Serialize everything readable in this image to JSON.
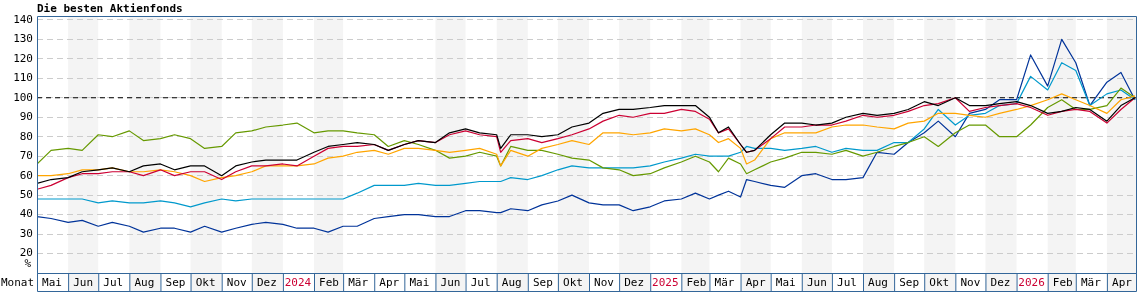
{
  "chart_data": {
    "type": "line",
    "title": "Die besten Aktienfonds",
    "xlabel": "Monat",
    "ylabel": "%",
    "x": [
      "2023-05-01",
      "2023-05-15",
      "2023-06-01",
      "2023-06-15",
      "2023-07-01",
      "2023-07-15",
      "2023-08-01",
      "2023-08-15",
      "2023-09-01",
      "2023-09-15",
      "2023-10-01",
      "2023-10-15",
      "2023-11-01",
      "2023-11-15",
      "2023-12-01",
      "2023-12-15",
      "2024-01-01",
      "2024-01-15",
      "2024-02-01",
      "2024-02-15",
      "2024-03-01",
      "2024-03-15",
      "2024-04-01",
      "2024-04-15",
      "2024-05-01",
      "2024-05-15",
      "2024-06-01",
      "2024-06-15",
      "2024-07-01",
      "2024-07-15",
      "2024-08-01",
      "2024-08-05",
      "2024-08-15",
      "2024-09-01",
      "2024-09-15",
      "2024-10-01",
      "2024-10-15",
      "2024-11-01",
      "2024-11-15",
      "2024-12-01",
      "2024-12-15",
      "2025-01-01",
      "2025-01-15",
      "2025-02-01",
      "2025-02-15",
      "2025-03-01",
      "2025-03-10",
      "2025-03-20",
      "2025-04-01",
      "2025-04-07",
      "2025-04-15",
      "2025-05-01",
      "2025-05-15",
      "2025-06-01",
      "2025-06-15",
      "2025-07-01",
      "2025-07-15",
      "2025-08-01",
      "2025-08-15",
      "2025-09-01",
      "2025-09-15",
      "2025-10-01",
      "2025-10-15",
      "2025-11-01",
      "2025-11-15",
      "2025-12-01",
      "2025-12-15",
      "2026-01-01",
      "2026-01-15",
      "2026-02-01",
      "2026-02-15",
      "2026-03-01",
      "2026-03-15",
      "2026-04-01",
      "2026-04-15",
      "2026-04-29"
    ],
    "series": [
      {
        "color": "#000000",
        "values": [
          56,
          58,
          59,
          62,
          63,
          64,
          62,
          65,
          66,
          63,
          65,
          65,
          60,
          65,
          67,
          68,
          68,
          68,
          72,
          75,
          76,
          77,
          76,
          73,
          76,
          78,
          77,
          82,
          84,
          82,
          81,
          74,
          81,
          81,
          80,
          81,
          85,
          87,
          92,
          94,
          94,
          95,
          96,
          96,
          96,
          90,
          82,
          85,
          76,
          72,
          73,
          81,
          87,
          87,
          86,
          87,
          90,
          92,
          91,
          92,
          94,
          98,
          96,
          100,
          96,
          96,
          97,
          98,
          96,
          92,
          93,
          95,
          94,
          88,
          96,
          100
        ]
      },
      {
        "color": "#cc0033",
        "values": [
          53,
          55,
          59,
          61,
          61,
          62,
          62,
          60,
          63,
          60,
          62,
          62,
          58,
          62,
          65,
          65,
          66,
          65,
          70,
          74,
          75,
          75,
          76,
          73,
          76,
          78,
          77,
          81,
          83,
          81,
          80,
          72,
          78,
          79,
          77,
          79,
          81,
          84,
          88,
          91,
          90,
          92,
          92,
          94,
          93,
          89,
          82,
          84,
          76,
          72,
          73,
          79,
          85,
          85,
          86,
          86,
          88,
          91,
          90,
          91,
          93,
          96,
          97,
          100,
          93,
          95,
          96,
          97,
          95,
          91,
          93,
          94,
          93,
          87,
          94,
          100
        ]
      },
      {
        "color": "#ffa500",
        "values": [
          60,
          60,
          61,
          63,
          63,
          64,
          62,
          62,
          63,
          62,
          60,
          57,
          59,
          60,
          62,
          65,
          65,
          65,
          66,
          69,
          70,
          72,
          73,
          71,
          74,
          74,
          73,
          72,
          73,
          74,
          71,
          65,
          73,
          70,
          74,
          76,
          78,
          76,
          82,
          82,
          81,
          82,
          84,
          83,
          84,
          81,
          77,
          79,
          74,
          66,
          68,
          79,
          82,
          82,
          82,
          85,
          86,
          86,
          85,
          84,
          87,
          88,
          92,
          92,
          91,
          90,
          92,
          94,
          96,
          99,
          102,
          99,
          96,
          92,
          99,
          101
        ]
      },
      {
        "color": "#669900",
        "values": [
          66,
          73,
          74,
          73,
          81,
          80,
          83,
          78,
          79,
          81,
          79,
          74,
          75,
          82,
          83,
          85,
          86,
          87,
          82,
          83,
          83,
          82,
          81,
          75,
          78,
          76,
          73,
          69,
          70,
          72,
          70,
          65,
          75,
          73,
          73,
          71,
          69,
          68,
          64,
          63,
          60,
          61,
          64,
          67,
          70,
          67,
          62,
          69,
          66,
          61,
          63,
          67,
          69,
          72,
          72,
          71,
          73,
          70,
          72,
          75,
          77,
          80,
          75,
          82,
          86,
          86,
          80,
          80,
          86,
          95,
          99,
          94,
          94,
          96,
          105,
          100
        ]
      },
      {
        "color": "#0099cc",
        "values": [
          48,
          48,
          48,
          48,
          46,
          47,
          46,
          46,
          47,
          46,
          44,
          46,
          48,
          47,
          48,
          48,
          48,
          48,
          48,
          48,
          48,
          51,
          55,
          55,
          55,
          56,
          55,
          55,
          56,
          57,
          57,
          57,
          59,
          58,
          60,
          63,
          65,
          64,
          64,
          64,
          64,
          65,
          67,
          69,
          71,
          70,
          70,
          70,
          72,
          75,
          74,
          74,
          73,
          74,
          75,
          72,
          74,
          73,
          73,
          77,
          77,
          84,
          94,
          86,
          91,
          92,
          96,
          97,
          111,
          104,
          118,
          114,
          96,
          102,
          104,
          99
        ]
      },
      {
        "color": "#003399",
        "values": [
          39,
          38,
          36,
          37,
          34,
          36,
          34,
          31,
          33,
          33,
          31,
          34,
          31,
          33,
          35,
          36,
          35,
          33,
          33,
          31,
          34,
          34,
          38,
          39,
          40,
          40,
          39,
          39,
          42,
          42,
          41,
          41,
          43,
          42,
          45,
          47,
          50,
          46,
          45,
          45,
          42,
          44,
          47,
          48,
          51,
          48,
          50,
          52,
          49,
          58,
          57,
          55,
          54,
          60,
          61,
          58,
          58,
          59,
          72,
          71,
          77,
          82,
          88,
          80,
          92,
          94,
          99,
          99,
          122,
          106,
          130,
          118,
          96,
          108,
          113,
          99
        ]
      }
    ],
    "xlim": [
      "2023-05-01",
      "2026-05-01"
    ],
    "xticks": [
      {
        "value": "2023-05-16",
        "label": "Mai"
      },
      {
        "value": "2023-06-16",
        "label": "Jun"
      },
      {
        "value": "2023-07-16",
        "label": "Jul"
      },
      {
        "value": "2023-08-16",
        "label": "Aug"
      },
      {
        "value": "2023-09-16",
        "label": "Sep"
      },
      {
        "value": "2023-10-16",
        "label": "Okt"
      },
      {
        "value": "2023-11-16",
        "label": "Nov"
      },
      {
        "value": "2023-12-16",
        "label": "Dez"
      },
      {
        "value": "2024-01-16",
        "label": "2024"
      },
      {
        "value": "2024-02-16",
        "label": "Feb"
      },
      {
        "value": "2024-03-16",
        "label": "Mär"
      },
      {
        "value": "2024-04-16",
        "label": "Apr"
      },
      {
        "value": "2024-05-16",
        "label": "Mai"
      },
      {
        "value": "2024-06-16",
        "label": "Jun"
      },
      {
        "value": "2024-07-16",
        "label": "Jul"
      },
      {
        "value": "2024-08-16",
        "label": "Aug"
      },
      {
        "value": "2024-09-16",
        "label": "Sep"
      },
      {
        "value": "2024-10-16",
        "label": "Okt"
      },
      {
        "value": "2024-11-16",
        "label": "Nov"
      },
      {
        "value": "2024-12-16",
        "label": "Dez"
      },
      {
        "value": "2025-01-16",
        "label": "2025"
      },
      {
        "value": "2025-02-16",
        "label": "Feb"
      },
      {
        "value": "2025-03-16",
        "label": "Mär"
      },
      {
        "value": "2025-04-16",
        "label": "Apr"
      },
      {
        "value": "2025-05-16",
        "label": "Mai"
      },
      {
        "value": "2025-06-16",
        "label": "Jun"
      },
      {
        "value": "2025-07-16",
        "label": "Jul"
      },
      {
        "value": "2025-08-16",
        "label": "Aug"
      },
      {
        "value": "2025-09-16",
        "label": "Sep"
      },
      {
        "value": "2025-10-16",
        "label": "Okt"
      },
      {
        "value": "2025-11-16",
        "label": "Nov"
      },
      {
        "value": "2025-12-16",
        "label": "Dez"
      },
      {
        "value": "2026-01-16",
        "label": "2026"
      },
      {
        "value": "2026-02-16",
        "label": "Feb"
      },
      {
        "value": "2026-03-16",
        "label": "Mär"
      },
      {
        "value": "2026-04-16",
        "label": "Apr"
      }
    ],
    "ylim": [
      10,
      142
    ],
    "yticks": [
      20,
      30,
      40,
      50,
      60,
      70,
      80,
      90,
      100,
      110,
      120,
      130,
      140
    ],
    "grid": "y",
    "marker": "none",
    "line_style": "solid",
    "ref_lines": [
      {
        "axis": "y",
        "value": 100,
        "color": "#000000",
        "line_style": "dashed"
      }
    ],
    "bands": [
      {
        "axis": "x",
        "from": "2023-06-01",
        "to": "2023-07-01",
        "color": "#f4f4f4"
      },
      {
        "axis": "x",
        "from": "2023-08-01",
        "to": "2023-09-01",
        "color": "#f4f4f4"
      },
      {
        "axis": "x",
        "from": "2023-10-01",
        "to": "2023-11-01",
        "color": "#f4f4f4"
      },
      {
        "axis": "x",
        "from": "2023-12-01",
        "to": "2024-01-01",
        "color": "#f4f4f4"
      },
      {
        "axis": "x",
        "from": "2024-02-01",
        "to": "2024-03-01",
        "color": "#f4f4f4"
      },
      {
        "axis": "x",
        "from": "2024-06-01",
        "to": "2024-07-01",
        "color": "#f4f4f4"
      },
      {
        "axis": "x",
        "from": "2024-08-01",
        "to": "2024-09-01",
        "color": "#f4f4f4"
      },
      {
        "axis": "x",
        "from": "2024-10-01",
        "to": "2024-11-01",
        "color": "#f4f4f4"
      },
      {
        "axis": "x",
        "from": "2024-12-01",
        "to": "2025-01-01",
        "color": "#f4f4f4"
      },
      {
        "axis": "x",
        "from": "2025-02-01",
        "to": "2025-03-01",
        "color": "#f4f4f4"
      },
      {
        "axis": "x",
        "from": "2025-04-01",
        "to": "2025-05-01",
        "color": "#f4f4f4"
      },
      {
        "axis": "x",
        "from": "2025-06-01",
        "to": "2025-07-01",
        "color": "#f4f4f4"
      },
      {
        "axis": "x",
        "from": "2025-08-01",
        "to": "2025-09-01",
        "color": "#f4f4f4"
      },
      {
        "axis": "x",
        "from": "2025-10-01",
        "to": "2025-11-01",
        "color": "#f4f4f4"
      },
      {
        "axis": "x",
        "from": "2025-12-01",
        "to": "2026-01-01",
        "color": "#f4f4f4"
      },
      {
        "axis": "x",
        "from": "2026-02-01",
        "to": "2026-03-01",
        "color": "#f4f4f4"
      },
      {
        "axis": "x",
        "from": "2026-04-01",
        "to": "2026-05-01",
        "color": "#f4f4f4"
      }
    ]
  }
}
